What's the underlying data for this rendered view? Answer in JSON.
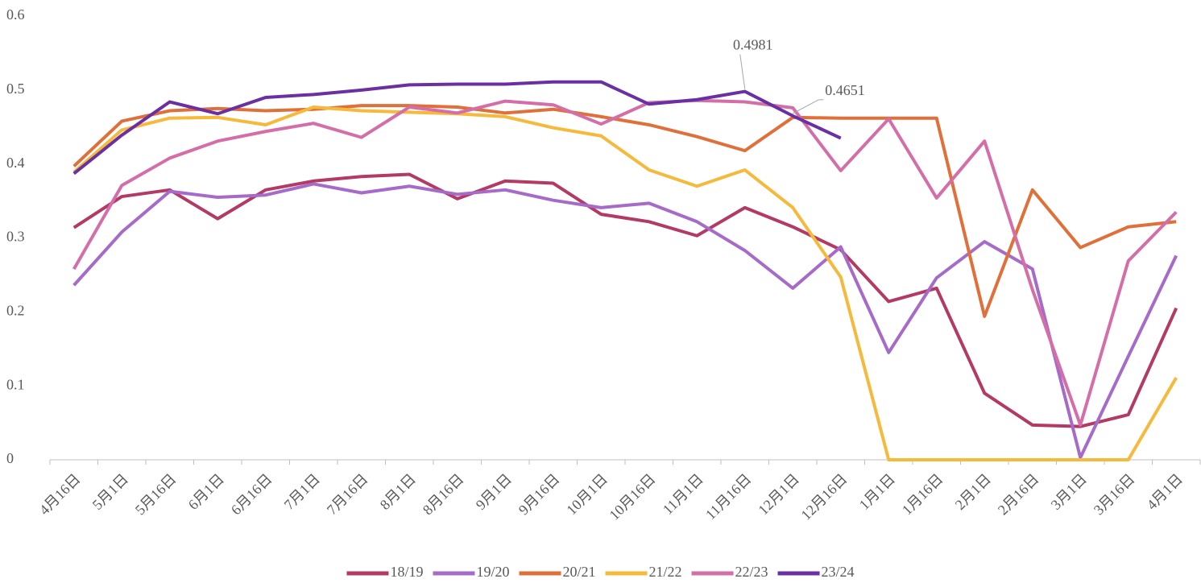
{
  "chart_data": {
    "type": "line",
    "categories": [
      "4月16日",
      "5月1日",
      "5月16日",
      "6月1日",
      "6月16日",
      "7月1日",
      "7月16日",
      "8月1日",
      "8月16日",
      "9月1日",
      "9月16日",
      "10月1日",
      "10月16日",
      "11月1日",
      "11月16日",
      "12月1日",
      "12月16日",
      "1月1日",
      "1月16日",
      "2月1日",
      "2月16日",
      "3月1日",
      "3月16日",
      "4月1日"
    ],
    "ylim": [
      0,
      0.6
    ],
    "yticks": [
      0,
      0.1,
      0.2,
      0.3,
      0.4,
      0.5,
      0.6
    ],
    "grid": false,
    "legend": "bottom",
    "series": [
      {
        "name": "18/19",
        "color": "#b23a64",
        "values": [
          0.314,
          0.356,
          0.365,
          0.326,
          0.365,
          0.377,
          0.383,
          0.386,
          0.353,
          0.377,
          0.374,
          0.332,
          0.322,
          0.303,
          0.341,
          0.315,
          0.284,
          0.214,
          0.232,
          0.09,
          0.047,
          0.045,
          0.061,
          0.205
        ]
      },
      {
        "name": "19/20",
        "color": "#a66bc8",
        "values": [
          0.236,
          0.308,
          0.363,
          0.355,
          0.358,
          0.373,
          0.361,
          0.37,
          0.359,
          0.365,
          0.351,
          0.341,
          0.347,
          0.322,
          0.283,
          0.232,
          0.288,
          0.145,
          0.246,
          0.295,
          0.258,
          0.003,
          0.14,
          0.276
        ]
      },
      {
        "name": "20/21",
        "color": "#e0703a",
        "values": [
          0.397,
          0.458,
          0.472,
          0.475,
          0.472,
          0.474,
          0.479,
          0.479,
          0.477,
          0.469,
          0.474,
          0.464,
          0.453,
          0.437,
          0.418,
          0.463,
          0.462,
          0.462,
          0.462,
          0.194,
          0.365,
          0.287,
          0.315,
          0.322
        ]
      },
      {
        "name": "21/22",
        "color": "#f5b93c",
        "values": [
          0.389,
          0.446,
          0.462,
          0.463,
          0.453,
          0.477,
          0.472,
          0.47,
          0.468,
          0.464,
          0.449,
          0.438,
          0.392,
          0.37,
          0.392,
          0.341,
          0.247,
          0,
          0,
          0,
          0,
          0,
          0,
          0.111
        ]
      },
      {
        "name": "22/23",
        "color": "#d36ea8",
        "values": [
          0.258,
          0.371,
          0.408,
          0.431,
          0.444,
          0.455,
          0.436,
          0.477,
          0.469,
          0.485,
          0.48,
          0.454,
          0.483,
          0.486,
          0.484,
          0.476,
          0.391,
          0.461,
          0.354,
          0.431,
          0.23,
          0.047,
          0.269,
          0.335
        ]
      },
      {
        "name": "23/24",
        "color": "#6a2fa2",
        "values": [
          0.387,
          0.439,
          0.484,
          0.468,
          0.49,
          0.494,
          0.5,
          0.507,
          0.508,
          0.508,
          0.511,
          0.511,
          0.481,
          0.487,
          0.4981,
          0.4651,
          0.435,
          null,
          null,
          null,
          null,
          null,
          null,
          null
        ],
        "data_labels": [
          14,
          15
        ]
      }
    ]
  }
}
